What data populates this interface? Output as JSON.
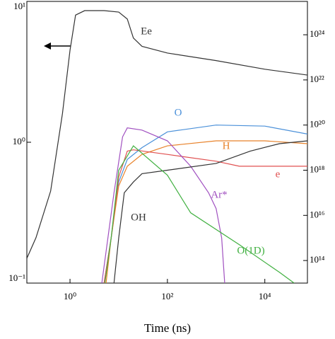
{
  "chart_data": {
    "type": "line",
    "xlabel": "Time (ns)",
    "xscale": "log",
    "yscale": "log",
    "y2scale": "log",
    "xlim": [
      0.13,
      75000
    ],
    "xticks": [
      {
        "value": 1,
        "label": "10⁰"
      },
      {
        "value": 100,
        "label": "10²"
      },
      {
        "value": 10000,
        "label": "10⁴"
      }
    ],
    "ylim": [
      0.1,
      10
    ],
    "yticks": [
      {
        "value": 0.1,
        "label": "10⁻¹"
      },
      {
        "value": 1,
        "label": "10⁰"
      },
      {
        "value": 10,
        "label": "10¹"
      }
    ],
    "y2lim": [
      10000000000000.0,
      3e+25
    ],
    "y2ticks": [
      {
        "value": 100000000000000.0,
        "label": "10¹⁴"
      },
      {
        "value": 1e+16,
        "label": "10¹⁶"
      },
      {
        "value": 1e+18,
        "label": "10¹⁸"
      },
      {
        "value": 1e+20,
        "label": "10²⁰"
      },
      {
        "value": 1e+22,
        "label": "10²²"
      },
      {
        "value": 1e+24,
        "label": "10²⁴"
      }
    ],
    "series": [
      {
        "name": "Ee",
        "color": "#333333",
        "axis": "y",
        "x": [
          0.13,
          0.2,
          0.4,
          0.7,
          1.0,
          1.3,
          2,
          5,
          10,
          15,
          20,
          30,
          100,
          1000,
          10000,
          75000
        ],
        "values": [
          0.15,
          0.21,
          0.45,
          1.6,
          4.5,
          8,
          8.6,
          8.6,
          8.4,
          7.5,
          5.5,
          4.8,
          4.3,
          3.8,
          3.3,
          3.0
        ]
      },
      {
        "name": "O",
        "color": "#4a90d9",
        "axis": "y2",
        "x": [
          5,
          7,
          10,
          15,
          30,
          100,
          1000,
          10000,
          75000
        ],
        "values": [
          10000000000000.0,
          1000000000000000.0,
          3e+17,
          3e+18,
          1e+19,
          5e+19,
          1e+20,
          9e+19,
          4e+19
        ]
      },
      {
        "name": "H",
        "color": "#e8822a",
        "axis": "y2",
        "x": [
          5.5,
          7,
          10,
          15,
          30,
          100,
          1000,
          10000,
          75000
        ],
        "values": [
          10000000000000.0,
          1000000000000000.0,
          2e+17,
          1.5e+18,
          5e+18,
          1.2e+19,
          2e+19,
          2e+19,
          1.5e+19
        ]
      },
      {
        "name": "e",
        "color": "#e05050",
        "axis": "y2",
        "x": [
          5,
          7,
          10,
          15,
          20,
          100,
          1000,
          3000,
          10000,
          75000
        ],
        "values": [
          10000000000000.0,
          1000000000000000.0,
          5e+17,
          7e+18,
          8e+18,
          5e+18,
          2.5e+18,
          1.5e+18,
          1.5e+18,
          1.5e+18
        ]
      },
      {
        "name": "Ar*",
        "color": "#a050c0",
        "axis": "y2",
        "x": [
          4.5,
          6,
          8,
          12,
          15,
          30,
          100,
          300,
          700,
          1000,
          1300,
          1500
        ],
        "values": [
          10000000000000.0,
          1000000000000000.0,
          1e+17,
          3e+19,
          7.5e+19,
          6e+19,
          2e+19,
          1.5e+18,
          1e+17,
          2e+16,
          1000000000000000.0,
          10000000000000.0
        ]
      },
      {
        "name": "OH",
        "color": "#333333",
        "axis": "y2",
        "x": [
          8,
          10,
          13,
          20,
          30,
          100,
          1000,
          5000,
          20000,
          75000
        ],
        "values": [
          10000000000000.0,
          1000000000000000.0,
          1e+17,
          3e+17,
          7e+17,
          1e+18,
          2e+18,
          7e+18,
          1.5e+19,
          2e+19
        ]
      },
      {
        "name": "O(1D)",
        "color": "#40b040",
        "axis": "y2",
        "x": [
          5.2,
          7,
          10,
          20,
          100,
          300,
          3000,
          20000,
          40000
        ],
        "values": [
          10000000000000.0,
          1000000000000000.0,
          1e+18,
          1.2e+19,
          6e+17,
          1.3e+16,
          500000000000000.0,
          30000000000000.0,
          10000000000000.0
        ]
      }
    ]
  }
}
